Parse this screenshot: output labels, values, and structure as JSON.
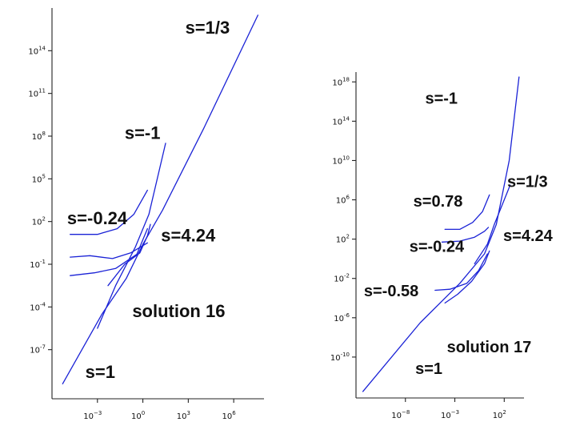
{
  "chart_data": [
    {
      "type": "line",
      "log_x": true,
      "log_y": true,
      "xlim": [
        -6,
        8
      ],
      "ylim": [
        -10,
        17
      ],
      "x_ticks": [
        {
          "exp": -3,
          "label": "10",
          "sup": "−3"
        },
        {
          "exp": 0,
          "label": "10",
          "sup": "0"
        },
        {
          "exp": 3,
          "label": "10",
          "sup": "3"
        },
        {
          "exp": 6,
          "label": "10",
          "sup": "6"
        }
      ],
      "y_ticks": [
        {
          "exp": 14,
          "label": "10",
          "sup": "14"
        },
        {
          "exp": 11,
          "label": "10",
          "sup": "11"
        },
        {
          "exp": 8,
          "label": "10",
          "sup": "8"
        },
        {
          "exp": 5,
          "label": "10",
          "sup": "5"
        },
        {
          "exp": 2,
          "label": "10",
          "sup": "2"
        },
        {
          "exp": -1,
          "label": "10",
          "sup": "-1"
        },
        {
          "exp": -4,
          "label": "10",
          "sup": "-4"
        },
        {
          "exp": -7,
          "label": "10",
          "sup": "-7"
        }
      ],
      "series": [
        {
          "values_log10": [
            [
              -5.3,
              -9.4
            ],
            [
              -2.7,
              -4.5
            ],
            [
              -1.1,
              -2.0
            ],
            [
              0.0,
              0.4
            ],
            [
              1.3,
              2.8
            ],
            [
              4.0,
              8.5
            ],
            [
              7.6,
              16.5
            ]
          ]
        },
        {
          "values_log10": [
            [
              -3.0,
              -5.5
            ],
            [
              -1.8,
              -2.5
            ],
            [
              -0.5,
              0.2
            ],
            [
              0.4,
              2.5
            ],
            [
              1.5,
              7.5
            ]
          ]
        },
        {
          "values_log10": [
            [
              -4.8,
              1.1
            ],
            [
              -3.0,
              1.1
            ],
            [
              -1.7,
              1.5
            ],
            [
              -0.6,
              2.5
            ],
            [
              0.3,
              4.2
            ]
          ]
        },
        {
          "values_log10": [
            [
              -4.8,
              -0.5
            ],
            [
              -3.5,
              -0.4
            ],
            [
              -2.0,
              -0.6
            ],
            [
              -0.8,
              -0.2
            ],
            [
              0.3,
              0.5
            ]
          ]
        },
        {
          "values_log10": [
            [
              -4.8,
              -1.8
            ],
            [
              -3.2,
              -1.6
            ],
            [
              -1.8,
              -1.3
            ],
            [
              -0.4,
              -0.3
            ],
            [
              0.3,
              1.5
            ]
          ]
        },
        {
          "values_log10": [
            [
              -2.3,
              -2.5
            ],
            [
              -1.2,
              -1.0
            ],
            [
              -0.2,
              -0.2
            ],
            [
              0.3,
              1.0
            ],
            [
              0.5,
              1.8
            ]
          ]
        }
      ],
      "annotations": [
        {
          "text": "s=1/3",
          "x": 2.8,
          "y": 15.2
        },
        {
          "text": "s=-1",
          "x": -1.2,
          "y": 7.8
        },
        {
          "text": "s=-0.24",
          "x": -5.0,
          "y": 1.8
        },
        {
          "text": "s=4.24",
          "x": 1.2,
          "y": 0.6
        },
        {
          "text": "solution 16",
          "x": -0.7,
          "y": -4.7
        },
        {
          "text": "s=1",
          "x": -3.8,
          "y": -9.0
        }
      ]
    },
    {
      "type": "line",
      "log_x": true,
      "log_y": true,
      "xlim": [
        -13,
        4
      ],
      "ylim": [
        -14,
        19
      ],
      "x_ticks": [
        {
          "exp": -8,
          "label": "10",
          "sup": "−8"
        },
        {
          "exp": -3,
          "label": "10",
          "sup": "−3"
        },
        {
          "exp": 2,
          "label": "10",
          "sup": "2"
        }
      ],
      "y_ticks": [
        {
          "exp": 18,
          "label": "10",
          "sup": "18"
        },
        {
          "exp": 14,
          "label": "10",
          "sup": "14"
        },
        {
          "exp": 10,
          "label": "10",
          "sup": "10"
        },
        {
          "exp": 6,
          "label": "10",
          "sup": "6"
        },
        {
          "exp": 2,
          "label": "10",
          "sup": "2"
        },
        {
          "exp": -2,
          "label": "10",
          "sup": "-2"
        },
        {
          "exp": -6,
          "label": "10",
          "sup": "-6"
        },
        {
          "exp": -10,
          "label": "10",
          "sup": "-10"
        }
      ],
      "series": [
        {
          "values_log10": [
            [
              -12.3,
              -13.5
            ],
            [
              -6.5,
              -6.5
            ],
            [
              -2.5,
              -2.5
            ],
            [
              0.0,
              0.5
            ],
            [
              1.2,
              3.5
            ],
            [
              2.5,
              10.0
            ],
            [
              3.5,
              18.5
            ]
          ]
        },
        {
          "values_log10": [
            [
              -1.0,
              -0.5
            ],
            [
              0.3,
              1.5
            ],
            [
              1.0,
              3.5
            ],
            [
              2.0,
              6.0
            ],
            [
              2.6,
              7.5
            ]
          ]
        },
        {
          "values_log10": [
            [
              -4.0,
              3.0
            ],
            [
              -2.5,
              3.0
            ],
            [
              -1.2,
              3.7
            ],
            [
              -0.2,
              4.8
            ],
            [
              0.5,
              6.5
            ]
          ]
        },
        {
          "values_log10": [
            [
              -4.3,
              1.7
            ],
            [
              -2.5,
              1.8
            ],
            [
              -1.0,
              2.2
            ],
            [
              0.0,
              2.8
            ],
            [
              0.4,
              3.2
            ]
          ]
        },
        {
          "values_log10": [
            [
              -5.0,
              -3.2
            ],
            [
              -3.5,
              -3.1
            ],
            [
              -1.8,
              -2.5
            ],
            [
              -0.6,
              -1.2
            ],
            [
              0.3,
              0.5
            ]
          ]
        },
        {
          "values_log10": [
            [
              -4.0,
              -4.5
            ],
            [
              -2.7,
              -3.6
            ],
            [
              -1.3,
              -2.3
            ],
            [
              0.0,
              -0.5
            ],
            [
              0.5,
              0.8
            ]
          ]
        }
      ],
      "annotations": [
        {
          "text": "s=-1",
          "x": -6.0,
          "y": 15.8
        },
        {
          "text": "s=1/3",
          "x": 2.3,
          "y": 7.3
        },
        {
          "text": "s=0.78",
          "x": -7.2,
          "y": 5.3
        },
        {
          "text": "s=4.24",
          "x": 1.9,
          "y": 1.8
        },
        {
          "text": "s=-0.24",
          "x": -7.6,
          "y": 0.7
        },
        {
          "text": "s=-0.58",
          "x": -12.2,
          "y": -3.8
        },
        {
          "text": "solution 17",
          "x": -3.8,
          "y": -9.5
        },
        {
          "text": "s=1",
          "x": -7.0,
          "y": -11.7
        }
      ]
    }
  ]
}
